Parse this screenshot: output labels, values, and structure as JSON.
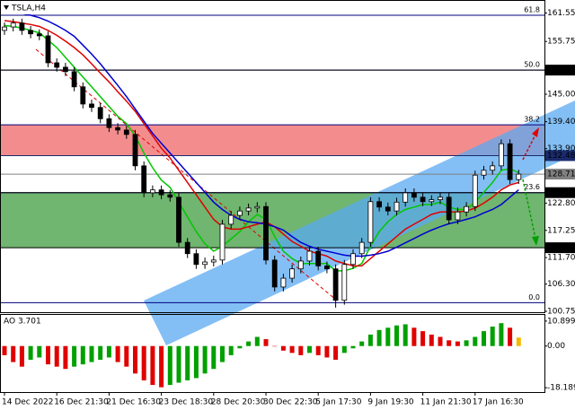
{
  "chart_data": [
    {
      "type": "candlestick",
      "title": "TSLA,H4",
      "categories": [
        "14 Dec 2022",
        null,
        null,
        null,
        null,
        null,
        "16 Dec 21:30",
        null,
        null,
        null,
        null,
        null,
        "21 Dec 16:30",
        null,
        null,
        null,
        null,
        null,
        "23 Dec 18:30",
        null,
        null,
        null,
        null,
        null,
        "28 Dec 20:30",
        null,
        null,
        null,
        null,
        null,
        "30 Dec 22:30",
        null,
        null,
        null,
        null,
        null,
        "5 Jan 17:30",
        null,
        null,
        null,
        null,
        null,
        "9 Jan 19:30",
        null,
        null,
        null,
        null,
        null,
        "11 Jan 21:30",
        null,
        null,
        null,
        null,
        null,
        "17 Jan 16:30",
        null,
        null,
        null,
        null,
        null
      ],
      "open": [
        158.0,
        158.7,
        159.5,
        158.0,
        157.3,
        156.9,
        151.4,
        150.5,
        149.6,
        146.5,
        143.0,
        142.3,
        140.0,
        138.2,
        137.7,
        136.8,
        130.4,
        124.9,
        125.5,
        124.5,
        124.0,
        114.8,
        112.5,
        110.3,
        110.8,
        111.2,
        118.5,
        120.3,
        121.2,
        121.8,
        122.1,
        111.2,
        105.7,
        107.5,
        109.4,
        111.0,
        113.0,
        110.0,
        109.4,
        103.0,
        110.3,
        112.5,
        114.8,
        123.1,
        122.0,
        121.2,
        123.0,
        124.9,
        124.0,
        123.1,
        123.5,
        124.0,
        119.4,
        121.0,
        122.1,
        128.5,
        129.5,
        130.4,
        134.9,
        127.6
      ],
      "high": [
        159.6,
        160.4,
        160.4,
        158.9,
        158.2,
        157.8,
        152.3,
        151.4,
        150.5,
        147.4,
        143.9,
        143.2,
        140.9,
        139.1,
        138.6,
        137.7,
        131.3,
        126.4,
        126.4,
        125.4,
        124.9,
        115.7,
        113.4,
        111.7,
        112.1,
        119.4,
        121.2,
        122.1,
        122.7,
        123.0,
        123.0,
        112.1,
        108.4,
        110.3,
        111.9,
        113.9,
        113.9,
        110.9,
        110.3,
        111.2,
        113.4,
        115.7,
        124.0,
        124.0,
        122.9,
        123.9,
        125.8,
        125.8,
        124.9,
        124.4,
        124.9,
        124.9,
        121.9,
        123.0,
        129.4,
        130.4,
        131.3,
        135.8,
        135.8,
        129.6
      ],
      "low": [
        157.1,
        157.8,
        157.1,
        156.4,
        156.0,
        150.5,
        149.6,
        148.7,
        145.6,
        142.1,
        141.4,
        139.1,
        137.3,
        136.8,
        135.9,
        129.5,
        124.0,
        124.0,
        123.6,
        123.1,
        113.9,
        111.6,
        109.4,
        109.4,
        109.9,
        110.3,
        117.6,
        119.4,
        120.3,
        120.9,
        110.3,
        104.8,
        104.8,
        106.6,
        108.5,
        110.1,
        109.1,
        108.5,
        101.5,
        102.1,
        109.4,
        111.6,
        113.9,
        121.1,
        120.3,
        120.3,
        122.1,
        123.1,
        122.2,
        122.2,
        122.6,
        118.5,
        118.5,
        120.1,
        121.2,
        127.6,
        128.6,
        129.5,
        126.7,
        126.7
      ],
      "close": [
        158.7,
        159.5,
        158.0,
        157.3,
        156.9,
        151.4,
        150.5,
        149.6,
        146.5,
        143.0,
        142.3,
        140.0,
        138.2,
        137.7,
        136.8,
        130.4,
        124.9,
        125.5,
        124.5,
        124.0,
        114.8,
        112.5,
        110.3,
        110.8,
        111.2,
        118.5,
        120.3,
        121.2,
        121.8,
        122.1,
        111.2,
        105.7,
        107.5,
        109.4,
        111.0,
        113.0,
        110.0,
        109.4,
        103.0,
        110.3,
        112.5,
        114.8,
        123.1,
        122.0,
        121.2,
        123.0,
        124.9,
        124.0,
        123.1,
        123.5,
        124.0,
        119.4,
        121.0,
        122.1,
        128.5,
        129.5,
        130.4,
        134.9,
        127.6,
        128.71
      ],
      "candle_color": "#000000",
      "lines": [
        {
          "color": "#00c800",
          "values": [
            159,
            158.8,
            158.5,
            158,
            157.5,
            156,
            154.5,
            152.5,
            150.5,
            148.5,
            146.5,
            144.5,
            142.5,
            140.5,
            139,
            136.5,
            133,
            130,
            127.5,
            126,
            123,
            120,
            117,
            114.5,
            113,
            114,
            115.5,
            117,
            119,
            120.5,
            119.5,
            116,
            113,
            111.5,
            110.5,
            110.5,
            110.5,
            110.5,
            109,
            109,
            109.5,
            110.5,
            114,
            117,
            119,
            120.5,
            121.5,
            122,
            122.5,
            122.5,
            123,
            122,
            121.5,
            121.5,
            123,
            125,
            127,
            129.5,
            129.8,
            129
          ]
        },
        {
          "color": "#e00000",
          "values": [
            160,
            159.8,
            159.5,
            159.2,
            158.8,
            158,
            157,
            155.8,
            154.5,
            153,
            151.2,
            149.3,
            147.5,
            145.5,
            143.6,
            141.5,
            139,
            136.5,
            134,
            132,
            129.5,
            127,
            124.5,
            122,
            119.5,
            118,
            117.5,
            117.5,
            118,
            118.5,
            119,
            118,
            116.5,
            115,
            114,
            113,
            112.5,
            112,
            111,
            110.5,
            110,
            110,
            111.5,
            113,
            114.5,
            116,
            117.5,
            118.5,
            119.5,
            120.5,
            121,
            121,
            121,
            121.2,
            121.8,
            122.8,
            124,
            125.5,
            126.5,
            127
          ]
        },
        {
          "color": "#0000d0",
          "values": [
            162,
            161.8,
            161.5,
            161.1,
            160.6,
            159.9,
            159,
            158,
            156.8,
            155,
            153.2,
            151.2,
            149,
            146.8,
            144.5,
            142,
            139.5,
            137,
            135,
            133,
            131,
            129,
            127,
            125,
            123,
            121.5,
            120.3,
            119.5,
            119,
            118.8,
            118.5,
            118,
            117.3,
            116,
            114.8,
            114,
            113.4,
            113,
            112.6,
            112.2,
            112,
            112,
            112.2,
            112.5,
            113,
            113.8,
            114.7,
            115.6,
            116.5,
            117.3,
            118,
            118.6,
            119,
            119.5,
            120,
            120.8,
            121.5,
            122.5,
            124,
            125.5
          ]
        }
      ],
      "zones": [
        {
          "from": 132.48,
          "to": 138.75,
          "color": "#f07070"
        },
        {
          "from": 113.71,
          "to": 124.94,
          "color": "#4ca34c"
        }
      ],
      "levels": [
        {
          "label": "61.8",
          "value": 161.1
        },
        {
          "label": "50.0",
          "value": 149.91
        },
        {
          "label": "38.2",
          "value": 138.75
        },
        {
          "label": "23.6",
          "value": 124.94
        },
        {
          "label": "0.0",
          "value": 102.5
        }
      ],
      "level_color": "#000080",
      "price_marks": [
        149.91,
        132.48,
        128.71,
        124.94,
        113.71
      ],
      "price_mark_colors": [
        "#000000",
        "#1a2a6c",
        "#808080",
        "#000000",
        "#000000"
      ],
      "ylim": [
        100.2,
        164.2
      ],
      "yticks": [
        161.55,
        155.75,
        {
          "value": 145,
          "label": "145.00"
        },
        {
          "value": 139.4,
          "label": "139.40"
        },
        {
          "value": 133.9,
          "label": "133.90"
        },
        {
          "value": 122.8,
          "label": "122.80"
        },
        117.25,
        {
          "value": 111.7,
          "label": "111.70"
        },
        {
          "value": 106.3,
          "label": "106.30"
        },
        100.75
      ]
    },
    {
      "type": "bar",
      "title": "AO 3.701",
      "values": [
        -4,
        -7,
        -9,
        -6,
        -5,
        -8,
        -9,
        -10,
        -9,
        -8,
        -7,
        -6,
        -5,
        -7,
        -9,
        -12,
        -15,
        -17,
        -18,
        -17,
        -16,
        -15,
        -14,
        -12,
        -10,
        -7,
        -4,
        -1,
        2,
        4,
        3,
        0,
        -2,
        -3,
        -4,
        -3,
        -4,
        -5,
        -6,
        -3,
        -1,
        2,
        5,
        7,
        8,
        9,
        9.5,
        8,
        6.5,
        5,
        4,
        2.5,
        2,
        2.5,
        4,
        6.5,
        8.5,
        10,
        8,
        3.701
      ],
      "up_color": "#00a000",
      "down_color": "#e00000",
      "last_color": "#f5b800",
      "ylim": [
        -20.1,
        13.6
      ],
      "yticks": [
        10.899,
        {
          "value": 0,
          "label": "0.00"
        },
        -18.189
      ]
    }
  ]
}
